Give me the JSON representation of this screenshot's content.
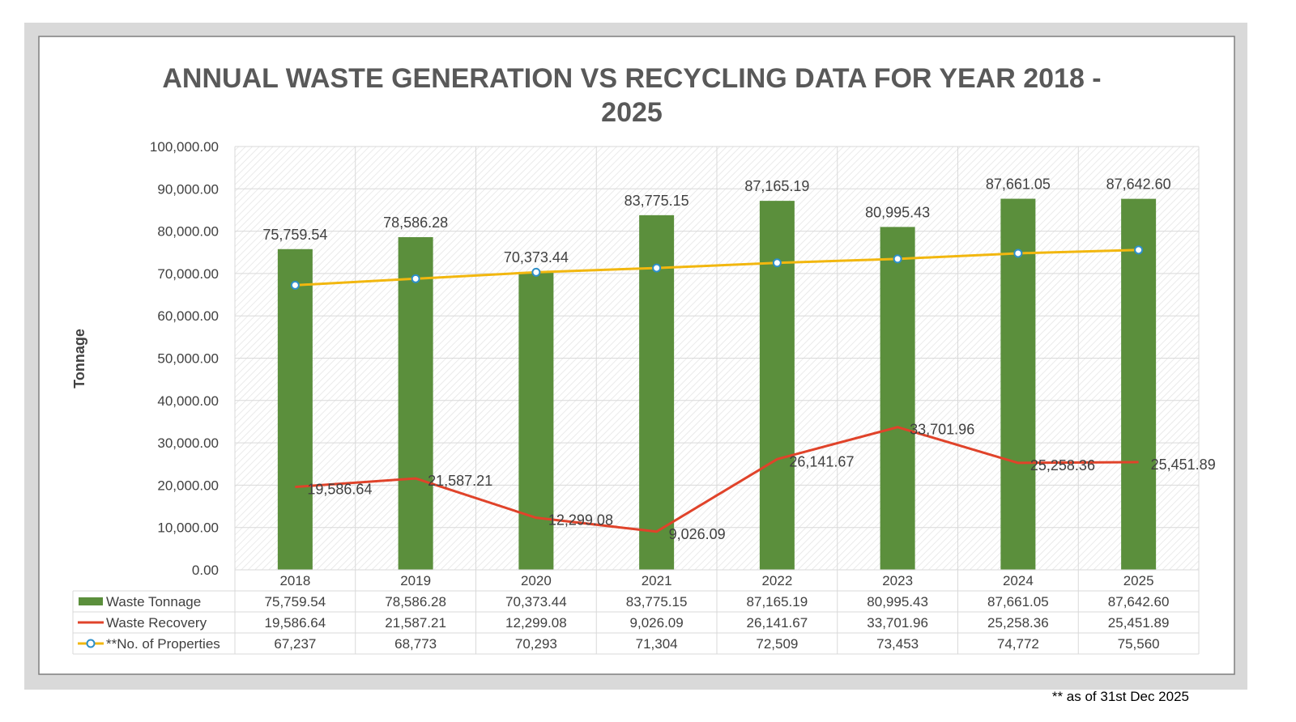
{
  "chart_data": {
    "type": "bar",
    "title_line1": "ANNUAL WASTE GENERATION VS RECYCLING DATA FOR YEAR 2018 -",
    "title_line2": "2025",
    "ylabel": "Tonnage",
    "ylim": [
      0,
      100000
    ],
    "yticks": [
      "0.00",
      "10,000.00",
      "20,000.00",
      "30,000.00",
      "40,000.00",
      "50,000.00",
      "60,000.00",
      "70,000.00",
      "80,000.00",
      "90,000.00",
      "100,000.00"
    ],
    "categories": [
      "2018",
      "2019",
      "2020",
      "2021",
      "2022",
      "2023",
      "2024",
      "2025"
    ],
    "grid": true,
    "legend": "data-table",
    "series": [
      {
        "name": "Waste Tonnage",
        "kind": "bar",
        "color": "#5B8F3C",
        "values": [
          75759.54,
          78586.28,
          70373.44,
          83775.15,
          87165.19,
          80995.43,
          87661.05,
          87642.6
        ],
        "labels": [
          "75,759.54",
          "78,586.28",
          "70,373.44",
          "83,775.15",
          "87,165.19",
          "80,995.43",
          "87,661.05",
          "87,642.60"
        ]
      },
      {
        "name": "Waste Recovery",
        "kind": "line",
        "color": "#E0432A",
        "values": [
          19586.64,
          21587.21,
          12299.08,
          9026.09,
          26141.67,
          33701.96,
          25258.36,
          25451.89
        ],
        "labels": [
          "19,586.64",
          "21,587.21",
          "12,299.08",
          "9,026.09",
          "26,141.67",
          "33,701.96",
          "25,258.36",
          "25,451.89"
        ]
      },
      {
        "name": "**No. of Properties",
        "kind": "line-marker",
        "color": "#F2B70F",
        "marker_color": "#2E8FC8",
        "values": [
          67237,
          68773,
          70293,
          71304,
          72509,
          73453,
          74772,
          75560
        ],
        "labels": [
          "67,237",
          "68,773",
          "70,293",
          "71,304",
          "72,509",
          "73,453",
          "74,772",
          "75,560"
        ]
      }
    ]
  },
  "footnote": "** as of 31st  Dec 2025",
  "colors": {
    "outer_frame": "#D9D9D9",
    "inner_border": "#7F7F7F",
    "grid": "#D9D9D9",
    "text": "#404040"
  }
}
